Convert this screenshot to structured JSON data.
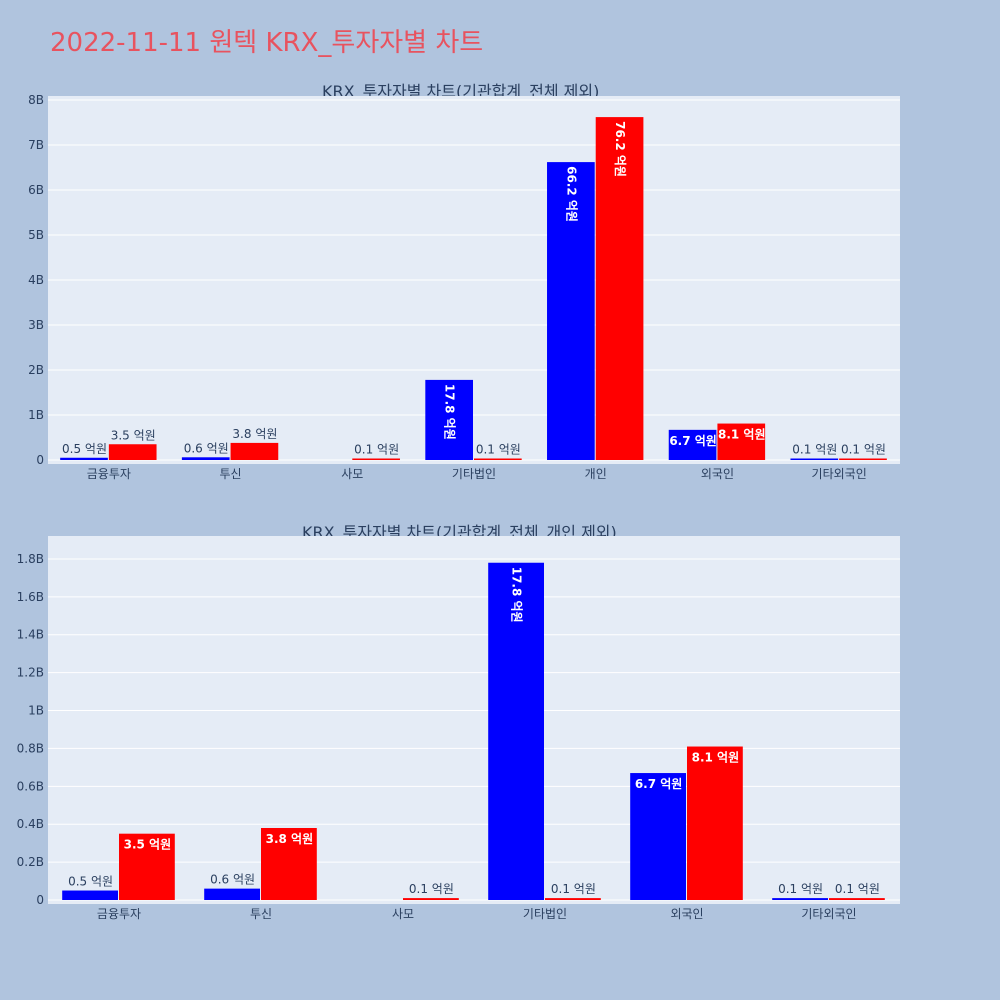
{
  "page": {
    "title": "2022-11-11 원텍 KRX_투자자별 차트"
  },
  "colors": {
    "background": "#b0c4de",
    "plot_bg": "#e5ecf6",
    "grid": "#ffffff",
    "series1": "#0000ff",
    "series2": "#ff0000",
    "title": "#e8535f",
    "text": "#2a3f5f"
  },
  "chart_data": [
    {
      "type": "bar",
      "title": "KRX_투자자별 차트(기관합계_전체 제외)",
      "categories": [
        "금융투자",
        "투신",
        "사모",
        "기타법인",
        "개인",
        "외국인",
        "기타외국인"
      ],
      "ylim": [
        0,
        8000000000
      ],
      "yticks": [
        0,
        1000000000,
        2000000000,
        3000000000,
        4000000000,
        5000000000,
        6000000000,
        7000000000,
        8000000000
      ],
      "ytick_labels": [
        "0",
        "1B",
        "2B",
        "3B",
        "4B",
        "5B",
        "6B",
        "7B",
        "8B"
      ],
      "grid": true,
      "series": [
        {
          "values": [
            50000000,
            60000000,
            0,
            1780000000,
            6620000000,
            670000000,
            10000000
          ],
          "labels": [
            "0.5 억원",
            "0.6 억원",
            "",
            "17.8 억원",
            "66.2 억원",
            "6.7 억원",
            "0.1 억원"
          ],
          "label_pos": [
            "outside",
            "outside",
            "none",
            "inside-rot",
            "inside-rot",
            "inside",
            "outside"
          ]
        },
        {
          "values": [
            350000000,
            380000000,
            10000000,
            10000000,
            7620000000,
            810000000,
            10000000
          ],
          "labels": [
            "3.5 억원",
            "3.8 억원",
            "0.1 억원",
            "0.1 억원",
            "76.2 억원",
            "8.1 억원",
            "0.1 억원"
          ],
          "label_pos": [
            "outside",
            "outside",
            "outside",
            "outside",
            "inside-rot",
            "inside",
            "outside"
          ]
        }
      ]
    },
    {
      "type": "bar",
      "title": "KRX_투자자별 차트(기관합계_전체_개인 제외)",
      "categories": [
        "금융투자",
        "투신",
        "사모",
        "기타법인",
        "외국인",
        "기타외국인"
      ],
      "ylim": [
        0,
        1900000000
      ],
      "yticks": [
        0,
        200000000,
        400000000,
        600000000,
        800000000,
        1000000000,
        1200000000,
        1400000000,
        1600000000,
        1800000000
      ],
      "ytick_labels": [
        "0",
        "0.2B",
        "0.4B",
        "0.6B",
        "0.8B",
        "1B",
        "1.2B",
        "1.4B",
        "1.6B",
        "1.8B"
      ],
      "grid": true,
      "series": [
        {
          "values": [
            50000000,
            60000000,
            0,
            1780000000,
            670000000,
            10000000
          ],
          "labels": [
            "0.5 억원",
            "0.6 억원",
            "",
            "17.8 억원",
            "6.7 억원",
            "0.1 억원"
          ],
          "label_pos": [
            "outside",
            "outside",
            "none",
            "inside-rot",
            "inside",
            "outside"
          ]
        },
        {
          "values": [
            350000000,
            380000000,
            10000000,
            10000000,
            810000000,
            10000000
          ],
          "labels": [
            "3.5 억원",
            "3.8 억원",
            "0.1 억원",
            "0.1 억원",
            "8.1 억원",
            "0.1 억원"
          ],
          "label_pos": [
            "inside",
            "inside",
            "outside",
            "outside",
            "inside",
            "outside"
          ]
        }
      ]
    }
  ]
}
